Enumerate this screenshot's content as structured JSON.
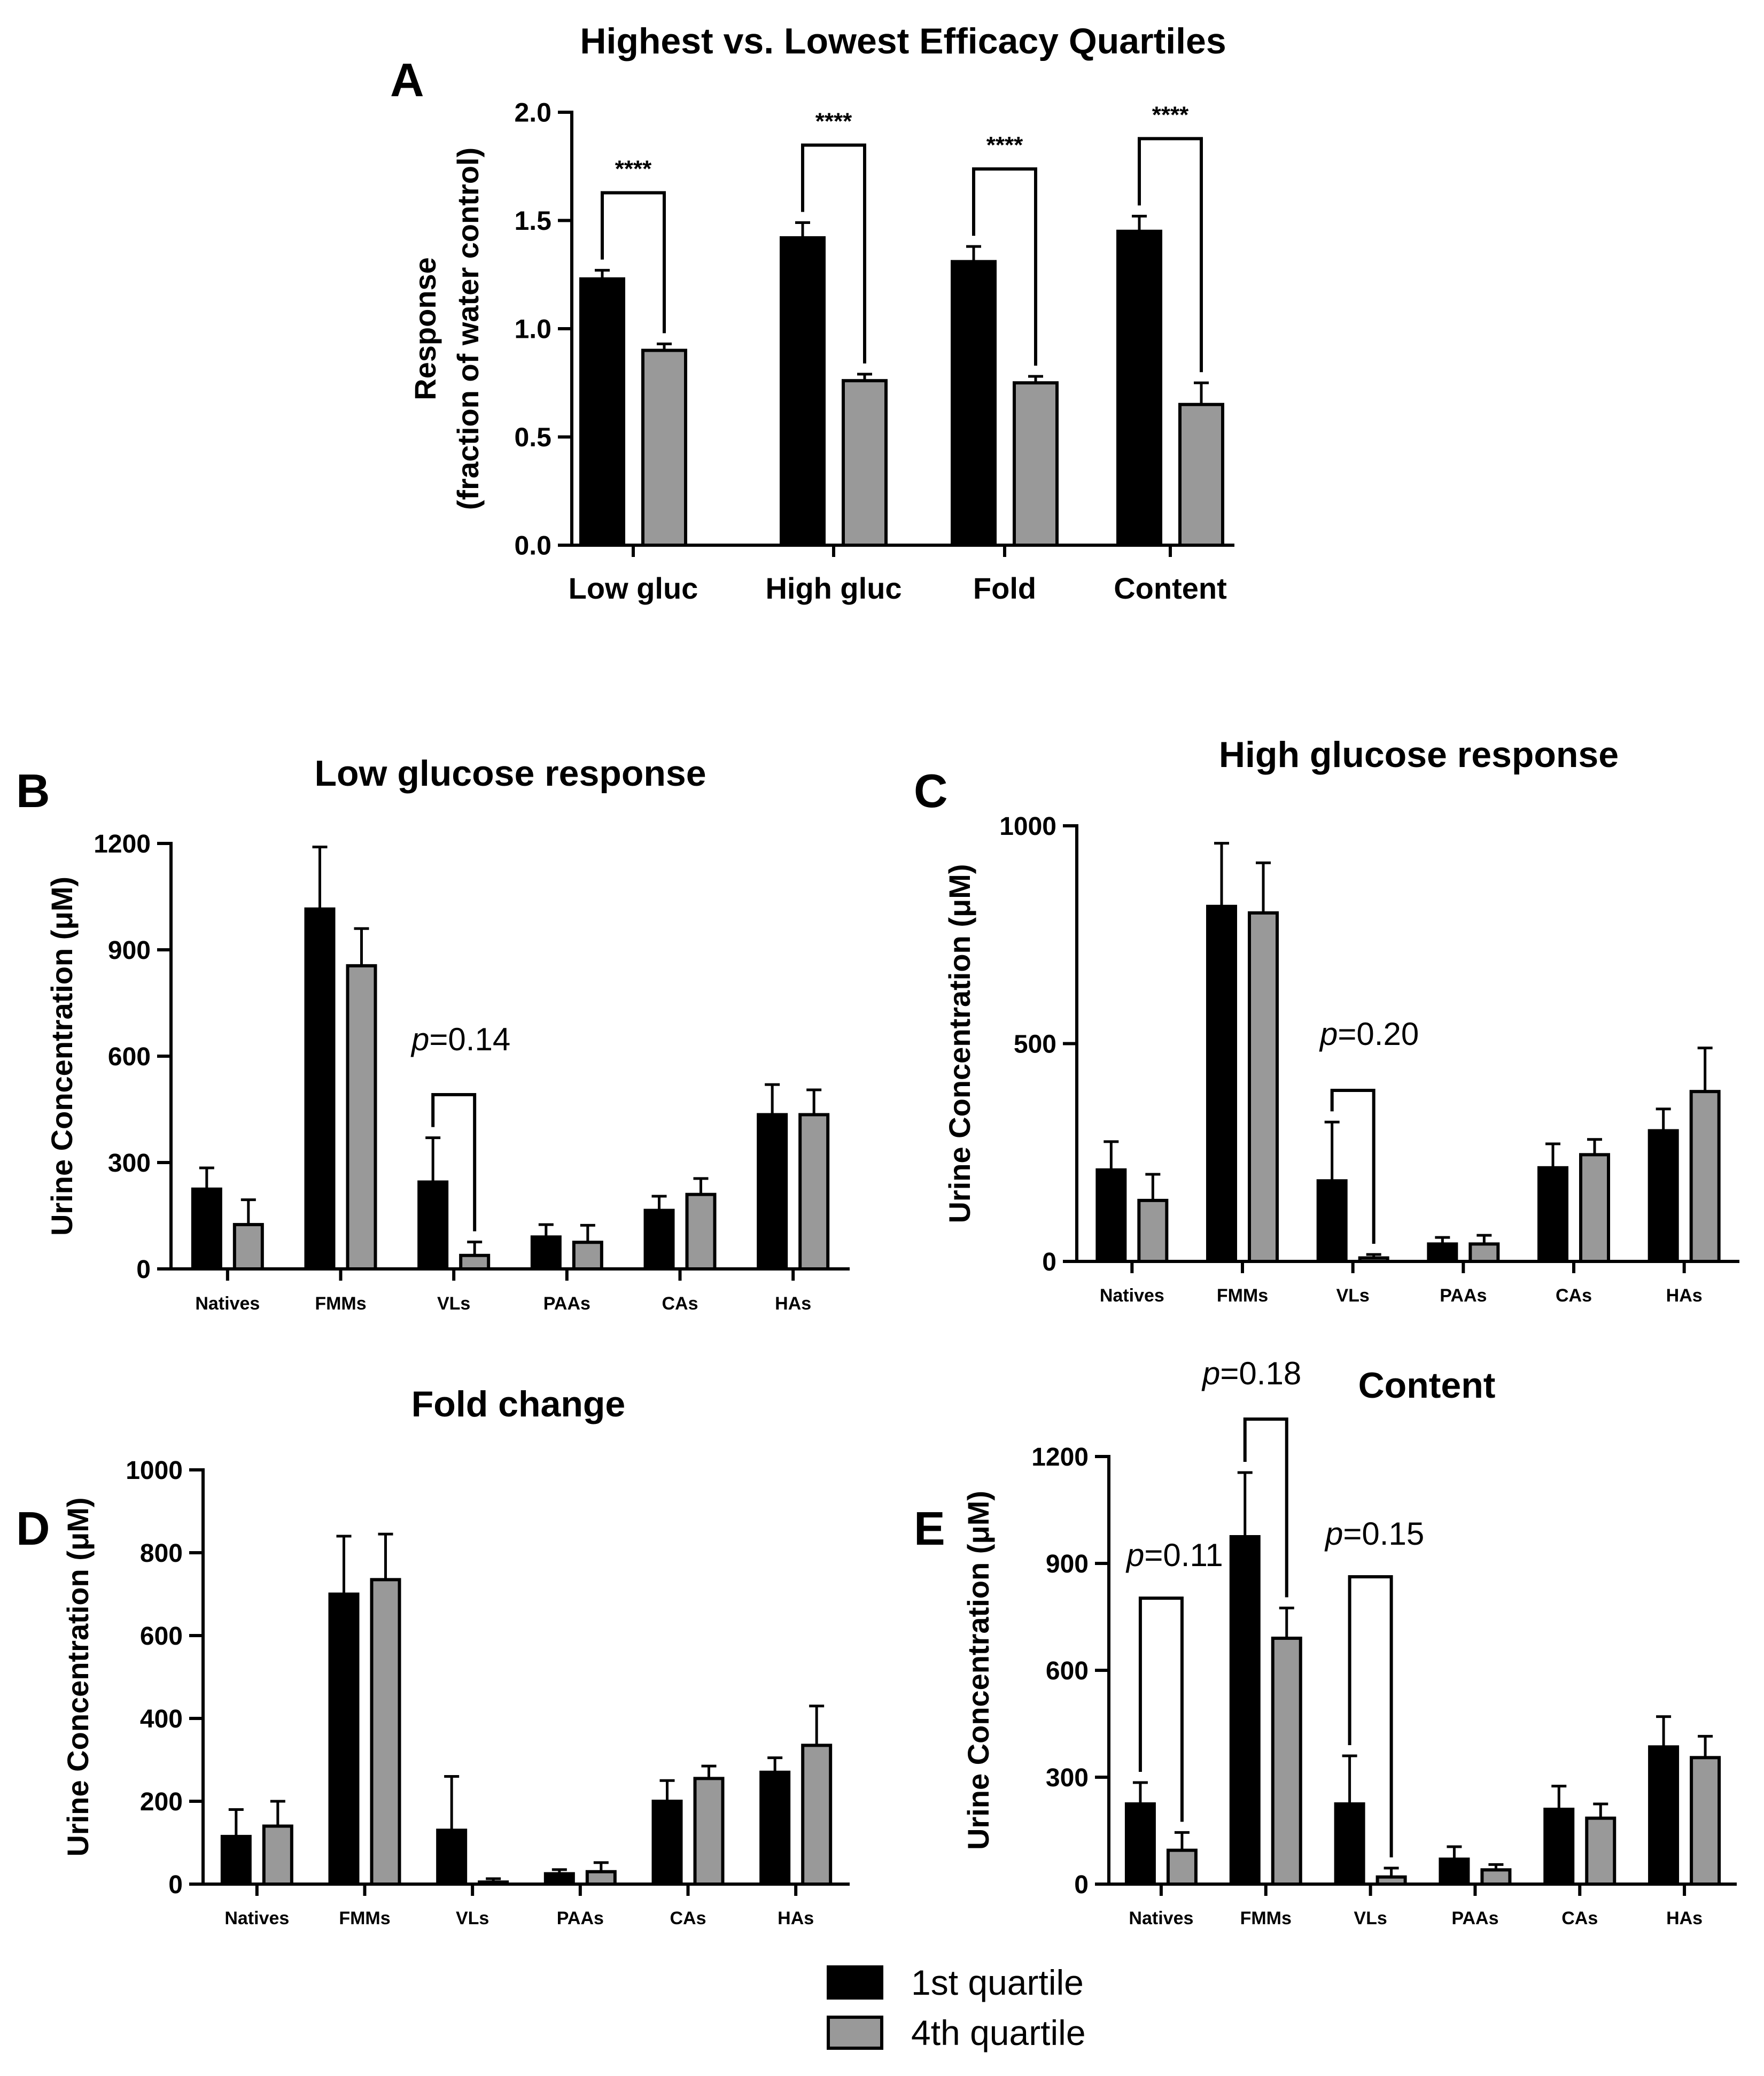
{
  "figure_title": "Highest vs. Lowest Efficacy Quartiles",
  "colors": {
    "q1": "#000000",
    "q4": "#999999",
    "edge": "#000000"
  },
  "legend": {
    "q1": "1st quartile",
    "q4": "4th quartile"
  },
  "chart_data": [
    {
      "id": "A",
      "letter": "A",
      "type": "bar",
      "title": "",
      "ylabel_line1": "Response",
      "ylabel_line2": "(fraction of water control)",
      "ylim": [
        0,
        2.0
      ],
      "yticks": [
        "0.0",
        "0.5",
        "1.0",
        "1.5",
        "2.0"
      ],
      "ytick_values": [
        0,
        0.5,
        1.0,
        1.5,
        2.0
      ],
      "categories": [
        "Low gluc",
        "High gluc",
        "Fold",
        "Content"
      ],
      "series": [
        {
          "name": "1st quartile",
          "values": [
            1.23,
            1.42,
            1.31,
            1.45
          ],
          "errors": [
            0.04,
            0.07,
            0.07,
            0.07
          ]
        },
        {
          "name": "4th quartile",
          "values": [
            0.9,
            0.76,
            0.75,
            0.65
          ],
          "errors": [
            0.03,
            0.03,
            0.03,
            0.1
          ]
        }
      ],
      "brackets": [
        {
          "category": 0,
          "text": "****",
          "style": "stars"
        },
        {
          "category": 1,
          "text": "****",
          "style": "stars"
        },
        {
          "category": 2,
          "text": "****",
          "style": "stars"
        },
        {
          "category": 3,
          "text": "****",
          "style": "stars"
        }
      ]
    },
    {
      "id": "B",
      "letter": "B",
      "type": "bar",
      "title": "Low glucose response",
      "ylabel": "Urine Concentration (μM)",
      "ylim": [
        0,
        1200
      ],
      "yticks": [
        "0",
        "300",
        "600",
        "900",
        "1200"
      ],
      "ytick_values": [
        0,
        300,
        600,
        900,
        1200
      ],
      "categories": [
        "Natives",
        "FMMs",
        "VLs",
        "PAAs",
        "CAs",
        "HAs"
      ],
      "series": [
        {
          "name": "1st quartile",
          "values": [
            225,
            1015,
            245,
            90,
            165,
            435
          ],
          "errors": [
            60,
            175,
            125,
            35,
            40,
            85
          ]
        },
        {
          "name": "4th quartile",
          "values": [
            125,
            855,
            38,
            75,
            210,
            435
          ],
          "errors": [
            70,
            105,
            38,
            48,
            45,
            70
          ]
        }
      ],
      "brackets": [
        {
          "category": 2,
          "text": "=0.14",
          "italic": "p",
          "style": "pval"
        }
      ]
    },
    {
      "id": "C",
      "letter": "C",
      "type": "bar",
      "title": "High glucose response",
      "ylabel": "Urine Concentration (μM)",
      "ylim": [
        0,
        1000
      ],
      "yticks": [
        "0",
        "500",
        "1000"
      ],
      "ytick_values": [
        0,
        500,
        1000
      ],
      "categories": [
        "Natives",
        "FMMs",
        "VLs",
        "PAAs",
        "CAs",
        "HAs"
      ],
      "series": [
        {
          "name": "1st quartile",
          "values": [
            210,
            815,
            185,
            40,
            215,
            300
          ],
          "errors": [
            65,
            145,
            135,
            15,
            55,
            50
          ]
        },
        {
          "name": "4th quartile",
          "values": [
            140,
            800,
            8,
            40,
            245,
            390
          ],
          "errors": [
            60,
            115,
            8,
            20,
            35,
            100
          ]
        }
      ],
      "brackets": [
        {
          "category": 2,
          "text": "=0.20",
          "italic": "p",
          "style": "pval"
        }
      ]
    },
    {
      "id": "D",
      "letter": "D",
      "type": "bar",
      "title": "Fold change",
      "ylabel": "Urine Concentration (μM)",
      "ylim": [
        0,
        1000
      ],
      "yticks": [
        "0",
        "200",
        "400",
        "600",
        "800",
        "1000"
      ],
      "ytick_values": [
        0,
        200,
        400,
        600,
        800,
        1000
      ],
      "categories": [
        "Natives",
        "FMMs",
        "VLs",
        "PAAs",
        "CAs",
        "HAs"
      ],
      "series": [
        {
          "name": "1st quartile",
          "values": [
            115,
            700,
            130,
            25,
            200,
            270
          ],
          "errors": [
            65,
            140,
            130,
            10,
            50,
            35
          ]
        },
        {
          "name": "4th quartile",
          "values": [
            140,
            735,
            5,
            30,
            255,
            335
          ],
          "errors": [
            60,
            110,
            8,
            22,
            30,
            95
          ]
        }
      ],
      "brackets": []
    },
    {
      "id": "E",
      "letter": "E",
      "type": "bar",
      "title": "Content",
      "ylabel": "Urine Concentration (μM)",
      "ylim": [
        0,
        1200
      ],
      "yticks": [
        "0",
        "300",
        "600",
        "900",
        "1200"
      ],
      "ytick_values": [
        0,
        300,
        600,
        900,
        1200
      ],
      "categories": [
        "Natives",
        "FMMs",
        "VLs",
        "PAAs",
        "CAs",
        "HAs"
      ],
      "series": [
        {
          "name": "1st quartile",
          "values": [
            225,
            975,
            225,
            70,
            210,
            385
          ],
          "errors": [
            60,
            180,
            135,
            35,
            65,
            85
          ]
        },
        {
          "name": "4th quartile",
          "values": [
            95,
            690,
            20,
            40,
            185,
            355
          ],
          "errors": [
            50,
            85,
            25,
            15,
            40,
            60
          ]
        }
      ],
      "brackets": [
        {
          "category": 0,
          "text": "=0.11",
          "italic": "p",
          "style": "pval"
        },
        {
          "category": 1,
          "text": "=0.18",
          "italic": "p",
          "style": "pval"
        },
        {
          "category": 2,
          "text": "=0.15",
          "italic": "p",
          "style": "pval"
        }
      ]
    }
  ]
}
